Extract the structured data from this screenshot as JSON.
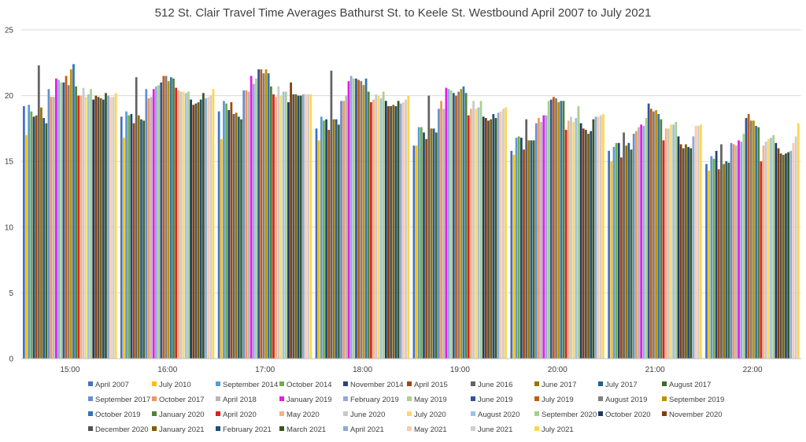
{
  "chart_data": {
    "type": "bar",
    "title": "512 St. Clair Travel Time Averages Bathurst St. to Keele St. Westbound April 2007 to July 2021",
    "xlabel": "",
    "ylabel": "",
    "ylim": [
      0,
      25
    ],
    "yticks": [
      0,
      5,
      10,
      15,
      20,
      25
    ],
    "grid": true,
    "legend_position": "bottom",
    "categories": [
      "15:00",
      "16:00",
      "17:00",
      "18:00",
      "19:00",
      "20:00",
      "21:00",
      "22:00"
    ],
    "series": [
      {
        "name": "April 2007",
        "color": "#4472C4",
        "values": [
          19.2,
          18.4,
          18.8,
          17.5,
          16.2,
          15.8,
          15.8,
          14.8
        ]
      },
      {
        "name": "July 2010",
        "color": "#FFC000",
        "values": [
          17.0,
          16.8,
          16.7,
          16.6,
          16.2,
          15.5,
          15.0,
          14.3
        ]
      },
      {
        "name": "September 2014",
        "color": "#5B9BD5",
        "values": [
          19.3,
          18.8,
          19.6,
          18.4,
          17.6,
          16.8,
          16.1,
          15.4
        ]
      },
      {
        "name": "October 2014",
        "color": "#70AD47",
        "values": [
          18.8,
          18.5,
          19.4,
          18.1,
          17.6,
          16.9,
          16.4,
          15.2
        ]
      },
      {
        "name": "November 2014",
        "color": "#264478",
        "values": [
          18.4,
          18.6,
          18.9,
          18.2,
          17.2,
          16.8,
          16.4,
          15.8
        ]
      },
      {
        "name": "April 2015",
        "color": "#9E480E",
        "values": [
          18.5,
          17.9,
          19.5,
          17.4,
          16.7,
          15.9,
          15.3,
          14.4
        ]
      },
      {
        "name": "June 2016",
        "color": "#636363",
        "values": [
          22.3,
          21.4,
          18.6,
          21.9,
          20.0,
          18.2,
          17.2,
          16.3
        ]
      },
      {
        "name": "June 2017",
        "color": "#997300",
        "values": [
          19.1,
          18.5,
          18.7,
          18.2,
          17.5,
          16.6,
          16.2,
          14.8
        ]
      },
      {
        "name": "July 2017",
        "color": "#255E91",
        "values": [
          18.3,
          18.2,
          18.4,
          18.2,
          17.5,
          16.6,
          16.4,
          15.0
        ]
      },
      {
        "name": "August 2017",
        "color": "#43682B",
        "values": [
          17.9,
          18.1,
          18.2,
          17.8,
          17.2,
          16.6,
          15.9,
          14.9
        ]
      },
      {
        "name": "September 2017",
        "color": "#698ED0",
        "values": [
          20.5,
          20.5,
          20.4,
          19.6,
          19.0,
          17.9,
          17.1,
          16.4
        ]
      },
      {
        "name": "October 2017",
        "color": "#F1975A",
        "values": [
          19.9,
          19.8,
          20.4,
          19.6,
          19.6,
          18.3,
          17.3,
          16.3
        ]
      },
      {
        "name": "April 2018",
        "color": "#B7B7B7",
        "values": [
          19.9,
          19.9,
          20.3,
          20.0,
          19.0,
          18.0,
          17.6,
          16.2
        ]
      },
      {
        "name": "January 2019",
        "color": "#E31CE8",
        "values": [
          21.3,
          20.5,
          21.5,
          21.1,
          20.6,
          18.5,
          17.8,
          16.6
        ]
      },
      {
        "name": "February 2019",
        "color": "#8FAADC",
        "values": [
          21.2,
          20.7,
          20.9,
          21.5,
          20.5,
          18.5,
          17.7,
          16.5
        ]
      },
      {
        "name": "May 2019",
        "color": "#A9D18E",
        "values": [
          21.0,
          20.8,
          21.3,
          21.3,
          20.4,
          19.6,
          18.3,
          17.1
        ]
      },
      {
        "name": "June 2019",
        "color": "#2E5597",
        "values": [
          21.0,
          21.0,
          22.0,
          21.3,
          20.2,
          19.7,
          19.4,
          18.3
        ]
      },
      {
        "name": "July 2019",
        "color": "#C55A11",
        "values": [
          21.5,
          21.5,
          22.0,
          21.2,
          20.0,
          19.9,
          19.0,
          18.6
        ]
      },
      {
        "name": "August 2019",
        "color": "#7F7F7F",
        "values": [
          20.8,
          21.5,
          21.7,
          21.1,
          20.3,
          19.8,
          18.8,
          18.1
        ]
      },
      {
        "name": "September 2019",
        "color": "#BF9000",
        "values": [
          22.0,
          21.1,
          22.0,
          20.8,
          20.5,
          19.5,
          18.9,
          18.1
        ]
      },
      {
        "name": "October 2019",
        "color": "#2F75B5",
        "values": [
          22.4,
          21.4,
          21.7,
          21.3,
          20.7,
          19.6,
          18.6,
          17.7
        ]
      },
      {
        "name": "January 2020",
        "color": "#548235",
        "values": [
          20.7,
          21.3,
          20.7,
          20.3,
          20.2,
          19.6,
          18.2,
          17.6
        ]
      },
      {
        "name": "April 2020",
        "color": "#E02020",
        "values": [
          20.0,
          20.6,
          20.1,
          19.5,
          18.5,
          17.4,
          16.6,
          15.0
        ]
      },
      {
        "name": "May 2020",
        "color": "#F4B183",
        "values": [
          20.0,
          20.4,
          19.9,
          19.7,
          19.0,
          18.1,
          17.5,
          16.2
        ]
      },
      {
        "name": "June 2020",
        "color": "#C9C9C9",
        "values": [
          20.6,
          20.3,
          20.7,
          20.1,
          19.6,
          18.4,
          17.5,
          16.5
        ]
      },
      {
        "name": "July 2020",
        "color": "#FFD966",
        "values": [
          19.9,
          20.3,
          20.0,
          20.0,
          19.0,
          18.0,
          17.8,
          16.7
        ]
      },
      {
        "name": "August 2020",
        "color": "#9DC3E6",
        "values": [
          20.1,
          20.2,
          20.3,
          19.8,
          19.1,
          18.3,
          17.8,
          16.8
        ]
      },
      {
        "name": "September 2020",
        "color": "#A8D08D",
        "values": [
          20.5,
          20.3,
          20.3,
          20.3,
          19.6,
          19.2,
          18.0,
          17.0
        ]
      },
      {
        "name": "October 2020",
        "color": "#1F3864",
        "values": [
          19.7,
          19.7,
          19.5,
          19.6,
          18.4,
          17.9,
          16.9,
          16.4
        ]
      },
      {
        "name": "November 2020",
        "color": "#843C0C",
        "values": [
          20.0,
          19.3,
          21.0,
          19.2,
          18.3,
          17.5,
          16.3,
          16.0
        ]
      },
      {
        "name": "December 2020",
        "color": "#525252",
        "values": [
          19.9,
          19.4,
          20.1,
          19.2,
          18.1,
          17.4,
          16.0,
          15.6
        ]
      },
      {
        "name": "January 2021",
        "color": "#7F6000",
        "values": [
          19.8,
          19.5,
          20.1,
          19.3,
          18.2,
          17.1,
          16.3,
          15.5
        ]
      },
      {
        "name": "February 2021",
        "color": "#1F4E79",
        "values": [
          19.7,
          19.7,
          20.0,
          19.2,
          18.6,
          17.3,
          16.1,
          15.6
        ]
      },
      {
        "name": "March 2021",
        "color": "#385723",
        "values": [
          20.2,
          20.2,
          20.0,
          19.6,
          18.3,
          18.2,
          16.0,
          15.7
        ]
      },
      {
        "name": "April 2021",
        "color": "#8EA9DB",
        "values": [
          20.0,
          19.8,
          20.1,
          19.4,
          18.7,
          18.4,
          16.9,
          15.8
        ]
      },
      {
        "name": "May 2021",
        "color": "#F8CBAD",
        "values": [
          19.9,
          19.9,
          20.1,
          19.5,
          18.8,
          18.4,
          17.7,
          16.4
        ]
      },
      {
        "name": "June 2021",
        "color": "#D0CECE",
        "values": [
          19.9,
          20.0,
          20.1,
          19.7,
          19.0,
          18.5,
          17.7,
          16.9
        ]
      },
      {
        "name": "July 2021",
        "color": "#FFD54F",
        "values": [
          20.2,
          20.5,
          20.1,
          20.0,
          19.1,
          18.6,
          17.8,
          17.9
        ]
      }
    ]
  }
}
